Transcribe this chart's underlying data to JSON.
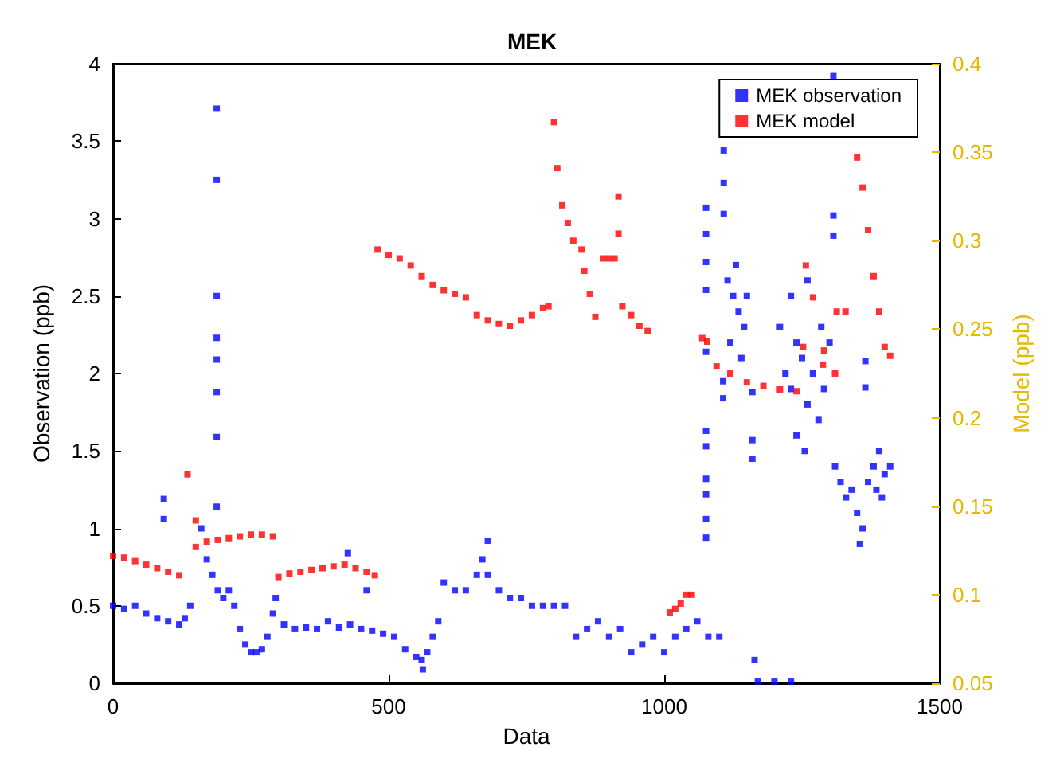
{
  "chart_data": {
    "type": "scatter",
    "title": "MEK",
    "xlabel": "Data",
    "ylabel": "Observation (ppb)",
    "y2label": "Model (ppb)",
    "marker": "square",
    "legend": "top right",
    "grid": false,
    "xlim": [
      0,
      1500
    ],
    "xticks": [
      0,
      500,
      1000,
      1500
    ],
    "ylim": [
      0,
      4
    ],
    "yticks": [
      0,
      0.5,
      1,
      1.5,
      2,
      2.5,
      3,
      3.5,
      4
    ],
    "y2lim": [
      0.05,
      0.4
    ],
    "y2ticks": [
      0.05,
      0.1,
      0.15,
      0.2,
      0.25,
      0.3,
      0.35,
      0.4
    ],
    "series": [
      {
        "name": "MEK observation",
        "color": "#0000ff",
        "x": [
          0,
          20,
          40,
          60,
          80,
          100,
          120,
          130,
          140,
          92,
          92,
          160,
          170,
          180,
          188,
          188,
          188,
          188,
          188,
          188,
          188,
          188,
          190,
          200,
          210,
          220,
          230,
          240,
          250,
          260,
          270,
          280,
          290,
          295,
          310,
          330,
          350,
          370,
          390,
          410,
          426,
          430,
          450,
          460,
          470,
          490,
          510,
          530,
          550,
          560,
          562,
          570,
          580,
          590,
          600,
          620,
          640,
          660,
          670,
          680,
          680,
          700,
          720,
          740,
          760,
          780,
          800,
          820,
          840,
          860,
          880,
          900,
          920,
          940,
          960,
          980,
          1000,
          1020,
          1040,
          1060,
          1076,
          1076,
          1076,
          1076,
          1076,
          1076,
          1076,
          1076,
          1076,
          1076,
          1076,
          1080,
          1100,
          1108,
          1108,
          1108,
          1107,
          1107,
          1115,
          1120,
          1125,
          1130,
          1135,
          1140,
          1145,
          1150,
          1160,
          1160,
          1160,
          1164,
          1170,
          1200,
          1230,
          1210,
          1220,
          1230,
          1230,
          1240,
          1240,
          1250,
          1255,
          1260,
          1260,
          1270,
          1280,
          1285,
          1290,
          1300,
          1307,
          1307,
          1307,
          1310,
          1320,
          1330,
          1340,
          1350,
          1355,
          1360,
          1365,
          1365,
          1370,
          1380,
          1385,
          1390,
          1395,
          1400,
          1410
        ],
        "values": [
          0.5,
          0.48,
          0.5,
          0.45,
          0.42,
          0.4,
          0.38,
          0.42,
          0.5,
          1.19,
          1.06,
          1.0,
          0.8,
          0.7,
          3.71,
          3.25,
          2.5,
          2.23,
          2.09,
          1.88,
          1.59,
          1.14,
          0.6,
          0.55,
          0.6,
          0.5,
          0.35,
          0.25,
          0.2,
          0.2,
          0.22,
          0.3,
          0.45,
          0.55,
          0.38,
          0.35,
          0.36,
          0.35,
          0.4,
          0.36,
          0.84,
          0.38,
          0.35,
          0.6,
          0.34,
          0.32,
          0.3,
          0.22,
          0.17,
          0.15,
          0.09,
          0.2,
          0.3,
          0.4,
          0.65,
          0.6,
          0.6,
          0.7,
          0.8,
          0.92,
          0.7,
          0.6,
          0.55,
          0.55,
          0.5,
          0.5,
          0.5,
          0.5,
          0.3,
          0.35,
          0.4,
          0.3,
          0.35,
          0.2,
          0.25,
          0.3,
          0.2,
          0.3,
          0.35,
          0.4,
          3.07,
          2.9,
          2.72,
          2.54,
          2.14,
          1.63,
          1.53,
          1.32,
          1.22,
          1.06,
          0.94,
          0.3,
          0.3,
          3.44,
          3.23,
          3.03,
          1.95,
          1.84,
          2.6,
          2.2,
          2.5,
          2.7,
          2.4,
          2.1,
          2.3,
          2.5,
          1.88,
          1.57,
          1.45,
          0.15,
          0.01,
          0.01,
          0.01,
          2.3,
          2.0,
          1.9,
          2.5,
          2.2,
          1.6,
          2.1,
          1.5,
          1.8,
          2.6,
          2.0,
          1.7,
          2.3,
          1.9,
          2.2,
          3.92,
          3.02,
          2.89,
          1.4,
          1.3,
          1.2,
          1.25,
          1.1,
          0.9,
          1.0,
          2.08,
          1.91,
          1.3,
          1.4,
          1.25,
          1.5,
          1.2,
          1.35,
          1.4
        ]
      },
      {
        "name": "MEK model",
        "color": "#ff0000",
        "axis": "y2",
        "x": [
          0,
          20,
          40,
          60,
          80,
          100,
          120,
          135,
          150,
          150,
          170,
          190,
          210,
          230,
          250,
          270,
          290,
          300,
          320,
          340,
          360,
          380,
          400,
          420,
          440,
          460,
          475,
          480,
          500,
          520,
          540,
          560,
          580,
          600,
          620,
          640,
          660,
          680,
          700,
          720,
          740,
          760,
          780,
          790,
          800,
          806,
          815,
          825,
          835,
          850,
          855,
          865,
          875,
          889,
          900,
          910,
          917,
          917,
          924,
          940,
          955,
          970,
          1010,
          1020,
          1030,
          1040,
          1050,
          1069,
          1078,
          1095,
          1120,
          1150,
          1180,
          1210,
          1240,
          1252,
          1257,
          1270,
          1288,
          1290,
          1310,
          1313,
          1329,
          1350,
          1360,
          1370,
          1380,
          1390,
          1400,
          1410
        ],
        "values": [
          0.122,
          0.121,
          0.119,
          0.117,
          0.115,
          0.113,
          0.111,
          0.168,
          0.142,
          0.127,
          0.13,
          0.131,
          0.132,
          0.133,
          0.134,
          0.134,
          0.133,
          0.11,
          0.112,
          0.113,
          0.114,
          0.115,
          0.116,
          0.117,
          0.115,
          0.113,
          0.111,
          0.295,
          0.292,
          0.29,
          0.286,
          0.28,
          0.275,
          0.272,
          0.27,
          0.268,
          0.258,
          0.255,
          0.253,
          0.252,
          0.255,
          0.258,
          0.262,
          0.263,
          0.367,
          0.341,
          0.32,
          0.31,
          0.3,
          0.295,
          0.283,
          0.27,
          0.257,
          0.29,
          0.29,
          0.29,
          0.325,
          0.304,
          0.263,
          0.258,
          0.252,
          0.249,
          0.09,
          0.092,
          0.095,
          0.1,
          0.1,
          0.245,
          0.243,
          0.229,
          0.225,
          0.22,
          0.218,
          0.216,
          0.215,
          0.24,
          0.286,
          0.268,
          0.23,
          0.238,
          0.225,
          0.26,
          0.26,
          0.347,
          0.33,
          0.306,
          0.28,
          0.26,
          0.24,
          0.235
        ]
      }
    ]
  }
}
